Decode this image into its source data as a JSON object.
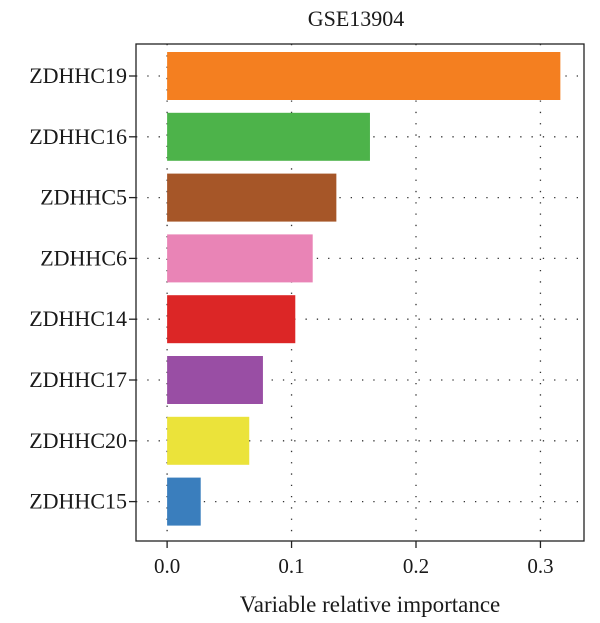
{
  "chart_data": {
    "type": "bar",
    "orientation": "horizontal",
    "title": "GSE13904",
    "xlabel": "Variable relative importance",
    "ylabel": "",
    "categories": [
      "ZDHHC19",
      "ZDHHC16",
      "ZDHHC5",
      "ZDHHC6",
      "ZDHHC14",
      "ZDHHC17",
      "ZDHHC20",
      "ZDHHC15"
    ],
    "values": [
      0.316,
      0.163,
      0.136,
      0.117,
      0.103,
      0.077,
      0.066,
      0.027
    ],
    "colors": [
      "#F47F20",
      "#4DB34A",
      "#A65628",
      "#E984B6",
      "#DC2626",
      "#994EA4",
      "#EBE33A",
      "#3A7EBD"
    ],
    "xlim": [
      -0.025,
      0.335
    ],
    "xticks": [
      0.0,
      0.1,
      0.2,
      0.3
    ],
    "xtick_labels": [
      "0.0",
      "0.1",
      "0.2",
      "0.3"
    ],
    "grid": "dotted"
  }
}
